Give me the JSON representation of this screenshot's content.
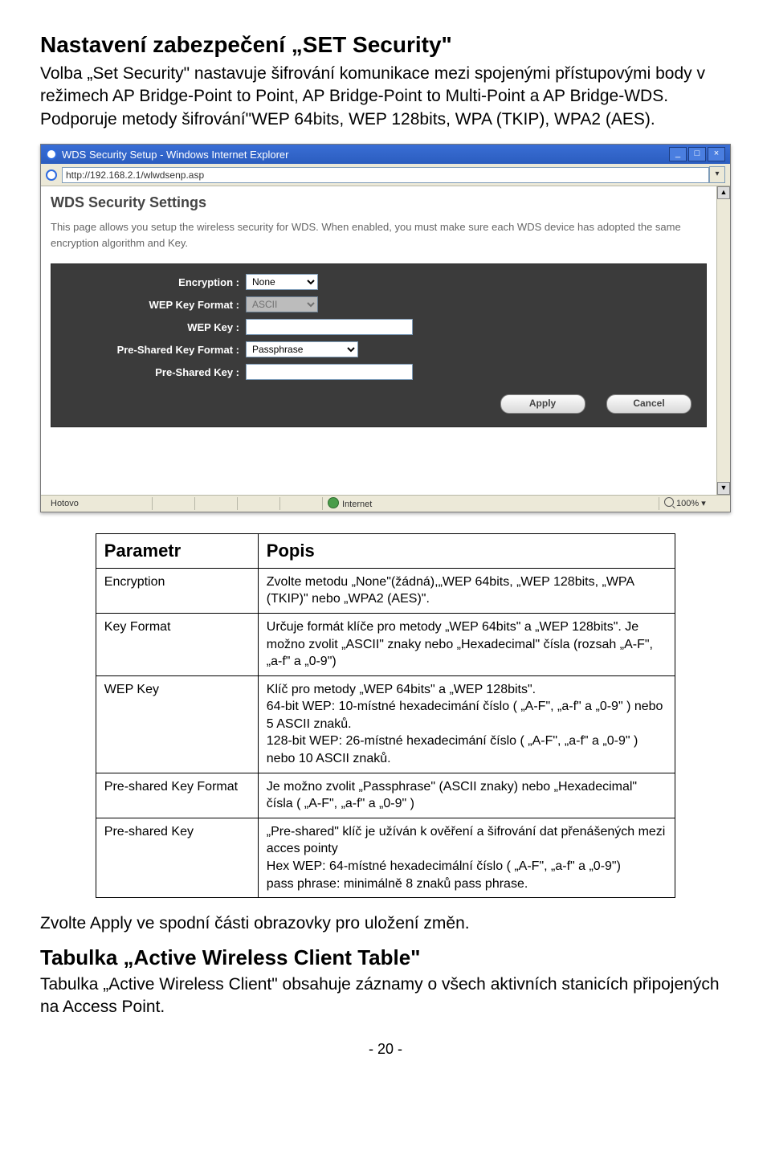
{
  "doc": {
    "h1": "Nastavení zabezpečení „SET Security\"",
    "intro": "Volba „Set Security\" nastavuje šifrování komunikace mezi spojenými přístupovými body v režimech AP Bridge-Point to Point, AP Bridge-Point to Multi-Point a AP Bridge-WDS. Podporuje metody šifrování\"WEP 64bits, WEP 128bits, WPA (TKIP), WPA2 (AES).",
    "h2": "Tabulka „Active Wireless Client Table\"",
    "apply_text": "Zvolte Apply ve spodní části obrazovky pro uložení změn.",
    "tail": "Tabulka „Active Wireless Client\" obsahuje záznamy o všech aktivních stanicích připojených na Access Point.",
    "page_num": "- 20 -"
  },
  "browser": {
    "title": "WDS Security Setup - Windows Internet Explorer",
    "url": "http://192.168.2.1/wlwdsenp.asp",
    "status_left": "Hotovo",
    "status_zone": "Internet",
    "status_zoom": "100%"
  },
  "page": {
    "title": "WDS Security Settings",
    "desc": "This page allows you setup the wireless security for WDS. When enabled, you must make sure each WDS device has adopted the same encryption algorithm and Key.",
    "rows": [
      {
        "label": "Encryption :",
        "type": "select",
        "value": "None",
        "disabled": false
      },
      {
        "label": "WEP Key Format :",
        "type": "select",
        "value": "ASCII",
        "disabled": true
      },
      {
        "label": "WEP Key :",
        "type": "input",
        "value": "",
        "disabled": false
      },
      {
        "label": "Pre-Shared Key Format :",
        "type": "select",
        "value": "Passphrase",
        "disabled": false
      },
      {
        "label": "Pre-Shared Key :",
        "type": "input",
        "value": "",
        "disabled": false
      }
    ],
    "btn_apply": "Apply",
    "btn_cancel": "Cancel"
  },
  "table": {
    "head1": "Parametr",
    "head2": "Popis",
    "rows": [
      {
        "p": "Encryption",
        "d": "Zvolte metodu „None\"(žádná),„WEP 64bits, „WEP 128bits, „WPA (TKIP)\" nebo „WPA2 (AES)\"."
      },
      {
        "p": "Key Format",
        "d": "Určuje formát klíče pro metody „WEP 64bits\" a „WEP 128bits\". Je možno zvolit „ASCII\" znaky nebo  „Hexadecimal\" čísla (rozsah „A-F\", „a-f\" a „0-9\")"
      },
      {
        "p": "WEP Key",
        "d": "Klíč pro metody „WEP 64bits\" a „WEP 128bits\".\n64-bit WEP: 10-místné hexadecimání číslo ( „A-F\", „a-f\" a „0-9\" ) nebo 5 ASCII znaků.\n128-bit WEP: 26-místné hexadecimání číslo ( „A-F\", „a-f\" a „0-9\" ) nebo 10  ASCII znaků."
      },
      {
        "p": "Pre-shared Key Format",
        "d": "Je možno zvolit „Passphrase\" (ASCII znaky) nebo „Hexadecimal\" čísla ( „A-F\", „a-f\" a „0-9\" )"
      },
      {
        "p": "Pre-shared Key",
        "d": "„Pre-shared\" klíč je užíván k ověření a šifrování dat přenášených mezi acces pointy\nHex WEP:  64-místné hexadecimální číslo ( „A-F\", „a-f\" a „0-9\")\npass phrase: minimálně  8 znaků pass phrase."
      }
    ]
  }
}
